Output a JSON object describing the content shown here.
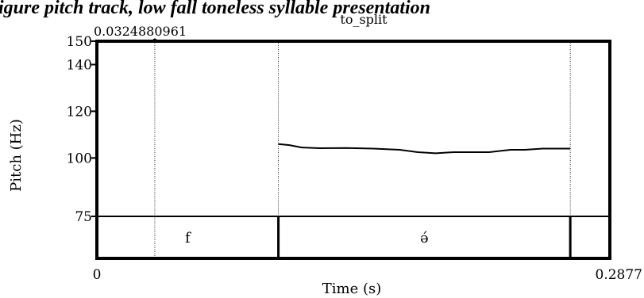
{
  "caption_fragment": "igure pitch track, low fall toneless syllable presentation",
  "chart_data": {
    "type": "line",
    "title": "to_split",
    "xlabel": "Time (s)",
    "ylabel": "Pitch (Hz)",
    "xlim": [
      0,
      0.2877
    ],
    "ylim": [
      75,
      150
    ],
    "x_tick_labels": [
      "0",
      "0.2877"
    ],
    "y_tick_labels": [
      "150",
      "140",
      "120",
      "100",
      "75"
    ],
    "y_ticks": [
      150,
      140,
      120,
      100,
      75
    ],
    "cursor": {
      "time": 0.0324880961,
      "label": "0.0324880961"
    },
    "boundaries": [
      0.1018,
      0.2655
    ],
    "series": [
      {
        "x": [
          0.1018,
          0.108,
          0.115,
          0.125,
          0.14,
          0.155,
          0.17,
          0.18,
          0.19,
          0.2,
          0.21,
          0.22,
          0.232,
          0.24,
          0.25,
          0.2655
        ],
        "y": [
          106.0,
          105.5,
          104.5,
          104.2,
          104.3,
          104.0,
          103.5,
          102.5,
          102.0,
          102.5,
          102.5,
          102.5,
          103.5,
          103.5,
          104.0,
          104.0
        ]
      }
    ],
    "intervals": [
      {
        "label": "f",
        "start": 0,
        "end": 0.1018
      },
      {
        "label": "ə́",
        "start": 0.1018,
        "end": 0.2655
      },
      {
        "label": "",
        "start": 0.2655,
        "end": 0.2877
      }
    ]
  }
}
